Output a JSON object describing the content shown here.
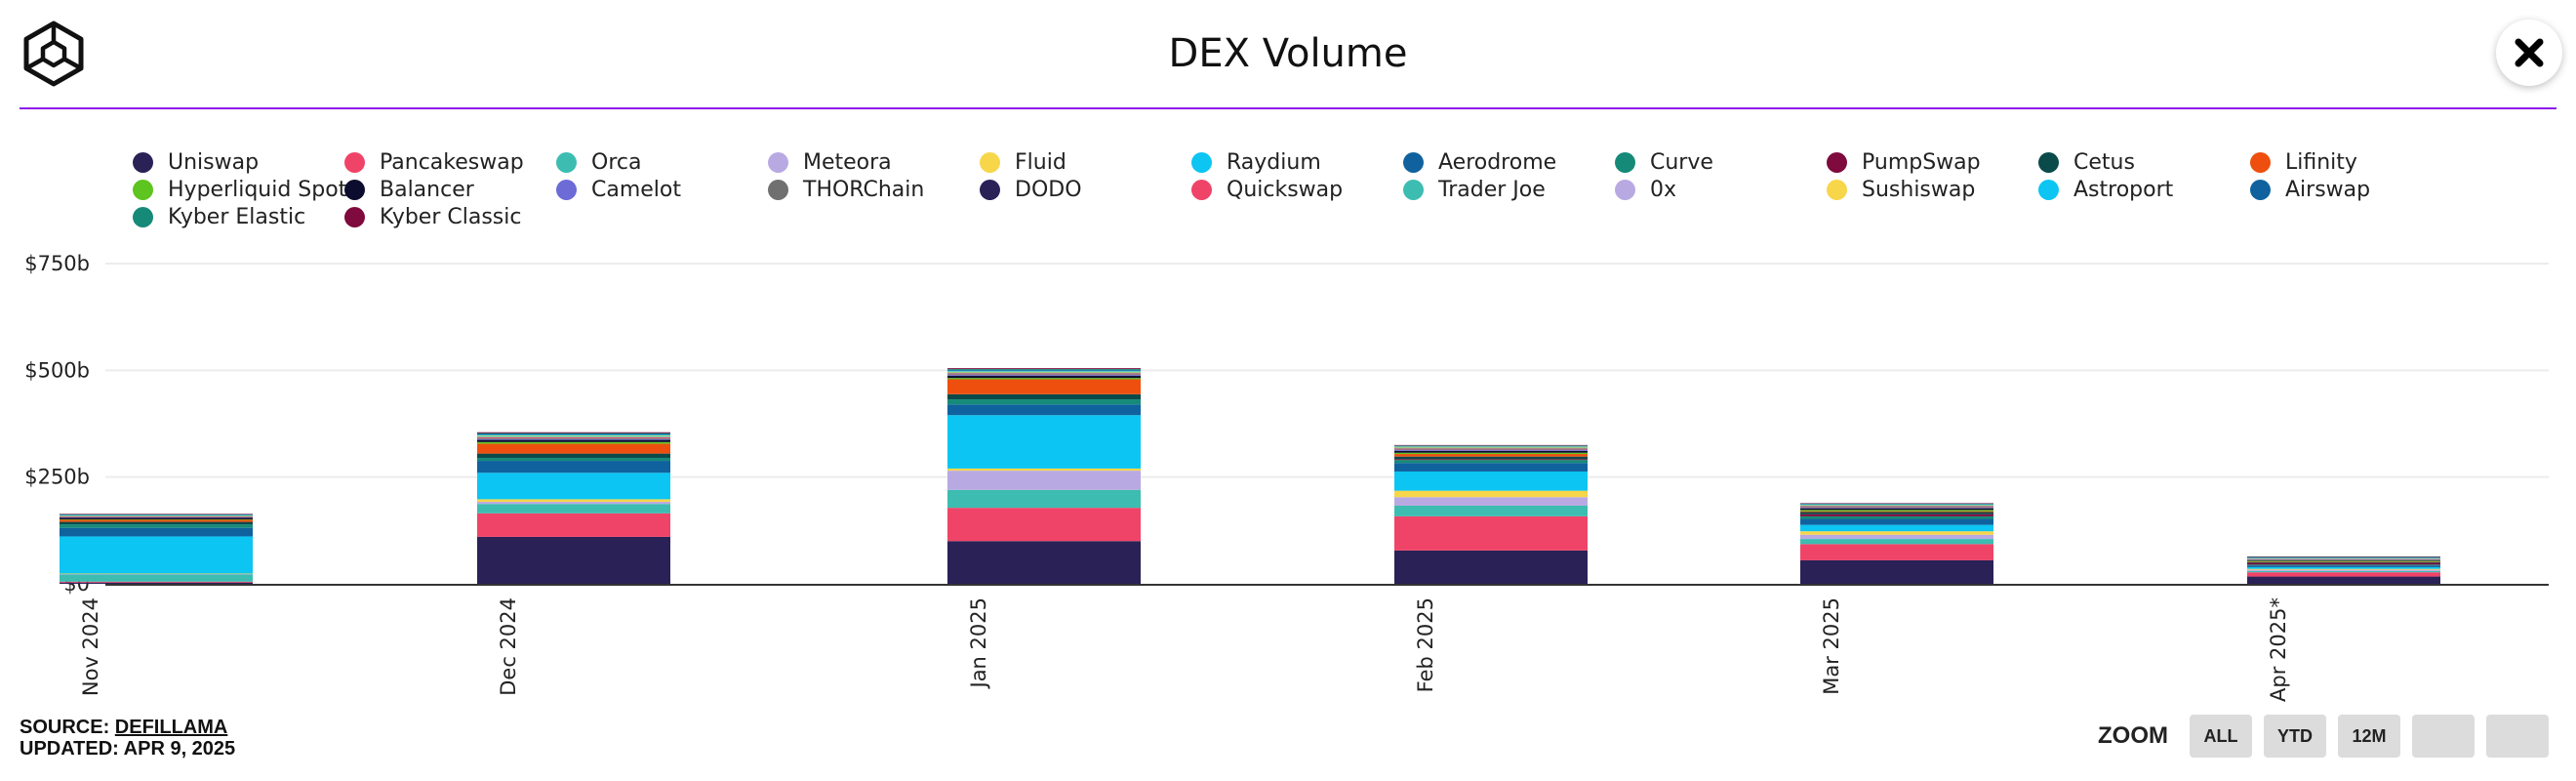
{
  "header": {
    "title": "DEX Volume",
    "logo_icon": "cube-logo-icon",
    "close_icon": "close-icon"
  },
  "legend": [
    {
      "name": "Uniswap",
      "color": "#2a2157"
    },
    {
      "name": "Pancakeswap",
      "color": "#ef4468"
    },
    {
      "name": "Orca",
      "color": "#3dbdb2"
    },
    {
      "name": "Meteora",
      "color": "#b9a9e2"
    },
    {
      "name": "Fluid",
      "color": "#f7d64a"
    },
    {
      "name": "Raydium",
      "color": "#0cc5f2"
    },
    {
      "name": "Aerodrome",
      "color": "#10629e"
    },
    {
      "name": "Curve",
      "color": "#158a78"
    },
    {
      "name": "PumpSwap",
      "color": "#7e0a3e"
    },
    {
      "name": "Cetus",
      "color": "#0b4a4a"
    },
    {
      "name": "Lifinity",
      "color": "#ee4f0e"
    },
    {
      "name": "Hyperliquid Spot",
      "color": "#5ec41f"
    },
    {
      "name": "Balancer",
      "color": "#0c0c2e"
    },
    {
      "name": "Camelot",
      "color": "#6d6bd6"
    },
    {
      "name": "THORChain",
      "color": "#707070"
    },
    {
      "name": "DODO",
      "color": "#2a2157"
    },
    {
      "name": "Quickswap",
      "color": "#ef4468"
    },
    {
      "name": "Trader Joe",
      "color": "#3dbdb2"
    },
    {
      "name": "0x",
      "color": "#b9a9e2"
    },
    {
      "name": "Sushiswap",
      "color": "#f7d64a"
    },
    {
      "name": "Astroport",
      "color": "#0cc5f2"
    },
    {
      "name": "Airswap",
      "color": "#10629e"
    },
    {
      "name": "Kyber Elastic",
      "color": "#158a78"
    },
    {
      "name": "Kyber Classic",
      "color": "#7e0a3e"
    }
  ],
  "chart_data": {
    "type": "bar",
    "stacked": true,
    "title": "DEX Volume",
    "categories": [
      "Nov 2024",
      "Dec 2024",
      "Jan 2025",
      "Feb 2025",
      "Mar 2025",
      "Apr 2025*"
    ],
    "y_ticks": [
      "$0",
      "$250b",
      "$500b",
      "$750b"
    ],
    "ylim": [
      0,
      750
    ],
    "y_unit": "$b",
    "grid": true,
    "series": [
      {
        "name": "Uniswap",
        "color": "#2a2157",
        "values": [
          3,
          110,
          100,
          78,
          55,
          17
        ]
      },
      {
        "name": "Pancakeswap",
        "color": "#ef4468",
        "values": [
          2,
          55,
          78,
          80,
          38,
          10
        ]
      },
      {
        "name": "Orca",
        "color": "#3dbdb2",
        "values": [
          17,
          22,
          42,
          25,
          12,
          3
        ]
      },
      {
        "name": "Meteora",
        "color": "#b9a9e2",
        "values": [
          1,
          5,
          45,
          20,
          10,
          3
        ]
      },
      {
        "name": "Fluid",
        "color": "#f7d64a",
        "values": [
          1,
          6,
          5,
          15,
          8,
          2
        ]
      },
      {
        "name": "Raydium",
        "color": "#0cc5f2",
        "values": [
          87,
          62,
          125,
          45,
          15,
          4
        ]
      },
      {
        "name": "Aerodrome",
        "color": "#10629e",
        "values": [
          20,
          28,
          25,
          20,
          14,
          4
        ]
      },
      {
        "name": "Curve",
        "color": "#158a78",
        "values": [
          8,
          7,
          12,
          7,
          6,
          2
        ]
      },
      {
        "name": "PumpSwap",
        "color": "#7e0a3e",
        "values": [
          0,
          0,
          0,
          2,
          5,
          4
        ]
      },
      {
        "name": "Cetus",
        "color": "#0b4a4a",
        "values": [
          6,
          10,
          12,
          6,
          5,
          2
        ]
      },
      {
        "name": "Lifinity",
        "color": "#ee4f0e",
        "values": [
          5,
          23,
          35,
          6,
          2,
          1
        ]
      },
      {
        "name": "Hyperliquid Spot",
        "color": "#5ec41f",
        "values": [
          1,
          4,
          3,
          3,
          3,
          2
        ]
      },
      {
        "name": "Balancer",
        "color": "#0c0c2e",
        "values": [
          4,
          5,
          5,
          4,
          4,
          1
        ]
      },
      {
        "name": "Camelot",
        "color": "#6d6bd6",
        "values": [
          1,
          2,
          2,
          2,
          1,
          1
        ]
      },
      {
        "name": "THORChain",
        "color": "#707070",
        "values": [
          1,
          2,
          2,
          2,
          2,
          1
        ]
      },
      {
        "name": "Quickswap",
        "color": "#ef4468",
        "values": [
          1,
          2,
          2,
          2,
          2,
          1
        ]
      },
      {
        "name": "Trader Joe",
        "color": "#3dbdb2",
        "values": [
          1,
          2,
          2,
          2,
          2,
          1
        ]
      },
      {
        "name": "Sushiswap",
        "color": "#f7d64a",
        "values": [
          1,
          2,
          2,
          2,
          1,
          1
        ]
      },
      {
        "name": "Astroport",
        "color": "#0cc5f2",
        "values": [
          1,
          2,
          2,
          1,
          1,
          1
        ]
      },
      {
        "name": "Airswap",
        "color": "#10629e",
        "values": [
          1,
          2,
          2,
          1,
          1,
          1
        ]
      },
      {
        "name": "Kyber Elastic",
        "color": "#158a78",
        "values": [
          1,
          2,
          2,
          1,
          1,
          1
        ]
      },
      {
        "name": "Kyber Classic",
        "color": "#7e0a3e",
        "values": [
          1,
          2,
          2,
          1,
          1,
          1
        ]
      }
    ]
  },
  "footer": {
    "source_prefix": "SOURCE: ",
    "source_name": "DEFILLAMA",
    "updated": "UPDATED: APR 9, 2025"
  },
  "zoom": {
    "label": "ZOOM",
    "buttons": [
      "ALL",
      "YTD",
      "12M",
      "",
      ""
    ]
  }
}
